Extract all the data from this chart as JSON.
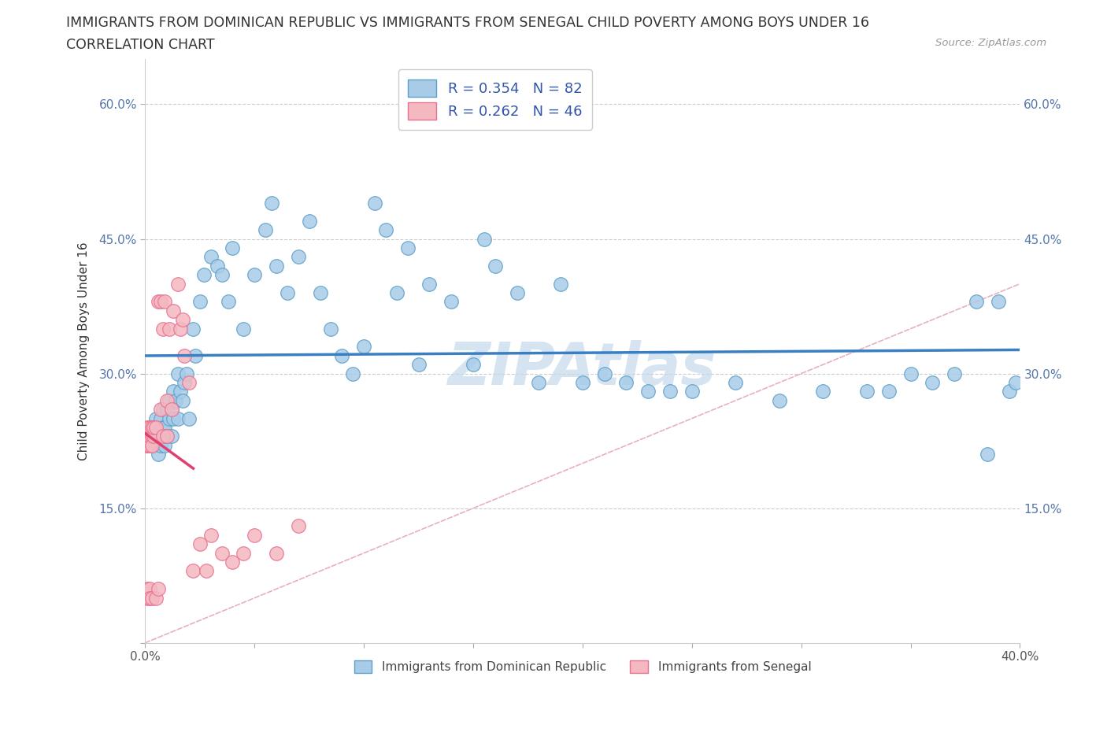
{
  "title": "IMMIGRANTS FROM DOMINICAN REPUBLIC VS IMMIGRANTS FROM SENEGAL CHILD POVERTY AMONG BOYS UNDER 16",
  "subtitle": "CORRELATION CHART",
  "source": "Source: ZipAtlas.com",
  "ylabel": "Child Poverty Among Boys Under 16",
  "xlim": [
    0.0,
    0.4
  ],
  "ylim": [
    0.0,
    0.65
  ],
  "legend_label1": "Immigrants from Dominican Republic",
  "legend_label2": "Immigrants from Senegal",
  "R1": 0.354,
  "N1": 82,
  "R2": 0.262,
  "N2": 46,
  "color1": "#a8cce8",
  "color2": "#f4b8c1",
  "edge1": "#5b9fc8",
  "edge2": "#e87090",
  "trendline1_color": "#3a7fc1",
  "trendline2_color": "#e04070",
  "diag_color": "#e8b0c0",
  "watermark_color": "#c5d8ea",
  "blue_x": [
    0.003,
    0.004,
    0.005,
    0.005,
    0.006,
    0.006,
    0.007,
    0.007,
    0.008,
    0.008,
    0.009,
    0.009,
    0.01,
    0.01,
    0.011,
    0.011,
    0.012,
    0.012,
    0.013,
    0.013,
    0.014,
    0.015,
    0.015,
    0.016,
    0.017,
    0.018,
    0.019,
    0.02,
    0.022,
    0.023,
    0.025,
    0.027,
    0.03,
    0.033,
    0.035,
    0.038,
    0.04,
    0.045,
    0.05,
    0.055,
    0.058,
    0.06,
    0.065,
    0.07,
    0.075,
    0.08,
    0.085,
    0.09,
    0.095,
    0.1,
    0.105,
    0.11,
    0.115,
    0.12,
    0.125,
    0.13,
    0.14,
    0.15,
    0.155,
    0.16,
    0.17,
    0.18,
    0.19,
    0.2,
    0.21,
    0.22,
    0.23,
    0.24,
    0.25,
    0.27,
    0.29,
    0.31,
    0.33,
    0.34,
    0.35,
    0.36,
    0.37,
    0.38,
    0.385,
    0.39,
    0.395,
    0.398
  ],
  "blue_y": [
    0.24,
    0.22,
    0.23,
    0.25,
    0.23,
    0.21,
    0.25,
    0.22,
    0.24,
    0.26,
    0.22,
    0.24,
    0.26,
    0.23,
    0.25,
    0.27,
    0.23,
    0.26,
    0.28,
    0.25,
    0.27,
    0.3,
    0.25,
    0.28,
    0.27,
    0.29,
    0.3,
    0.25,
    0.35,
    0.32,
    0.38,
    0.41,
    0.43,
    0.42,
    0.41,
    0.38,
    0.44,
    0.35,
    0.41,
    0.46,
    0.49,
    0.42,
    0.39,
    0.43,
    0.47,
    0.39,
    0.35,
    0.32,
    0.3,
    0.33,
    0.49,
    0.46,
    0.39,
    0.44,
    0.31,
    0.4,
    0.38,
    0.31,
    0.45,
    0.42,
    0.39,
    0.29,
    0.4,
    0.29,
    0.3,
    0.29,
    0.28,
    0.28,
    0.28,
    0.29,
    0.27,
    0.28,
    0.28,
    0.28,
    0.3,
    0.29,
    0.3,
    0.38,
    0.21,
    0.38,
    0.28,
    0.29
  ],
  "pink_x": [
    0.001,
    0.001,
    0.001,
    0.001,
    0.001,
    0.001,
    0.002,
    0.002,
    0.002,
    0.002,
    0.002,
    0.003,
    0.003,
    0.003,
    0.003,
    0.004,
    0.004,
    0.005,
    0.005,
    0.006,
    0.006,
    0.007,
    0.007,
    0.008,
    0.008,
    0.009,
    0.01,
    0.01,
    0.011,
    0.012,
    0.013,
    0.015,
    0.016,
    0.017,
    0.018,
    0.02,
    0.022,
    0.025,
    0.028,
    0.03,
    0.035,
    0.04,
    0.045,
    0.05,
    0.06,
    0.07
  ],
  "pink_y": [
    0.22,
    0.22,
    0.23,
    0.24,
    0.05,
    0.06,
    0.22,
    0.23,
    0.24,
    0.06,
    0.05,
    0.23,
    0.22,
    0.24,
    0.05,
    0.23,
    0.24,
    0.24,
    0.05,
    0.38,
    0.06,
    0.38,
    0.26,
    0.35,
    0.23,
    0.38,
    0.27,
    0.23,
    0.35,
    0.26,
    0.37,
    0.4,
    0.35,
    0.36,
    0.32,
    0.29,
    0.08,
    0.11,
    0.08,
    0.12,
    0.1,
    0.09,
    0.1,
    0.12,
    0.1,
    0.13
  ],
  "xtick_pos": [
    0.0,
    0.05,
    0.1,
    0.15,
    0.2,
    0.25,
    0.3,
    0.35,
    0.4
  ],
  "xticklabels": [
    "0.0%",
    "",
    "",
    "",
    "",
    "",
    "",
    "",
    "40.0%"
  ],
  "ytick_pos": [
    0.0,
    0.15,
    0.3,
    0.45,
    0.6
  ],
  "yticklabels": [
    "",
    "15.0%",
    "30.0%",
    "45.0%",
    "60.0%"
  ]
}
